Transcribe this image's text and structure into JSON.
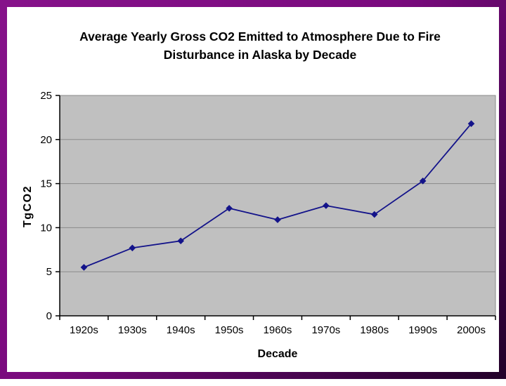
{
  "frame": {
    "border_color_light": "#7d0b80",
    "border_color_dark": "#23012a",
    "background": "#ffffff"
  },
  "header": {
    "title_lines": [
      "Average Yearly Gross CO2 Emitted to Atmosphere Due to Fire",
      "Disturbance in Alaska by Decade"
    ]
  },
  "chart_data": {
    "type": "line",
    "title": "Average Yearly Gross CO2 Emitted to Atmosphere Due to Fire Disturbance in Alaska by Decade",
    "categories": [
      "1920s",
      "1930s",
      "1940s",
      "1950s",
      "1960s",
      "1970s",
      "1980s",
      "1990s",
      "2000s"
    ],
    "values": [
      5.5,
      7.7,
      8.5,
      12.2,
      10.9,
      12.5,
      11.5,
      15.3,
      21.8
    ],
    "xlabel": "Decade",
    "ylabel": "TgCO2",
    "ylim": [
      0,
      25
    ],
    "ytick_step": 5,
    "ytick_labels": [
      "0",
      "5",
      "10",
      "15",
      "20",
      "25"
    ],
    "grid": true,
    "legend": "none",
    "marker": "diamond",
    "colors": {
      "plot_bg": "#c0c0c0",
      "gridline": "#8a8a8a",
      "axis": "#000000",
      "line": "#13138a",
      "marker_fill": "#13138a",
      "text": "#000000"
    }
  }
}
